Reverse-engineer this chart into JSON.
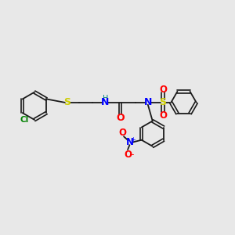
{
  "background_color": "#e8e8e8",
  "bond_color": "#1a1a1a",
  "cl_color": "#008000",
  "s_color": "#cccc00",
  "n_color": "#0000ff",
  "o_color": "#ff0000",
  "h_color": "#008080",
  "figsize": [
    3.0,
    3.0
  ],
  "dpi": 100,
  "xlim": [
    0,
    10
  ],
  "ylim": [
    0,
    10
  ]
}
